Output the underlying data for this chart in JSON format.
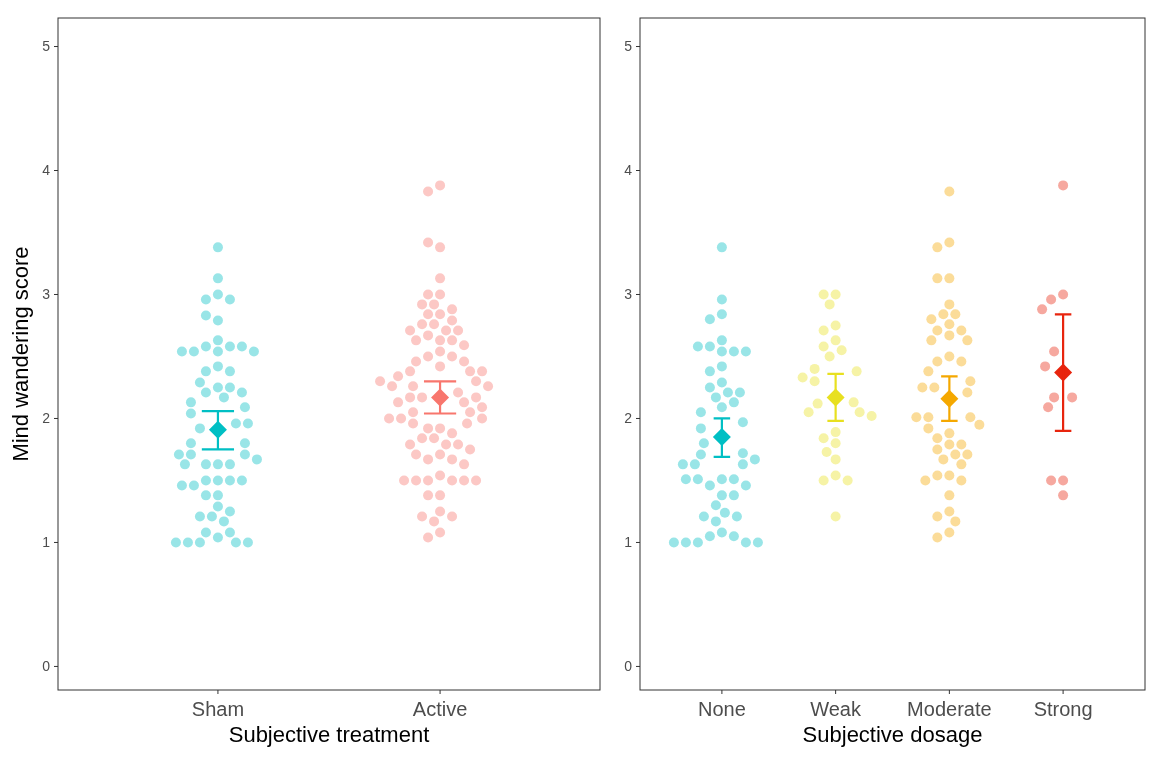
{
  "chart_data": [
    {
      "type": "scatter",
      "xlabel": "Subjective treatment",
      "ylabel": "Mind wandering score",
      "categories": [
        "Sham",
        "Active"
      ],
      "ylim": [
        -0.19,
        5.23
      ],
      "yticks": [
        0,
        1,
        2,
        3,
        4,
        5
      ],
      "series": [
        {
          "type": "scatter",
          "marker": "circle",
          "color": "#99e5e7",
          "x": [
            "Sham",
            "Sham",
            "Sham",
            "Sham",
            "Sham",
            "Sham",
            "Sham",
            "Sham",
            "Sham",
            "Sham",
            "Sham",
            "Sham",
            "Sham",
            "Sham",
            "Sham",
            "Sham",
            "Sham",
            "Sham",
            "Sham",
            "Sham",
            "Sham",
            "Sham",
            "Sham",
            "Sham",
            "Sham",
            "Sham",
            "Sham",
            "Sham",
            "Sham",
            "Sham",
            "Sham",
            "Sham",
            "Sham",
            "Sham",
            "Sham",
            "Sham",
            "Sham",
            "Sham",
            "Sham",
            "Sham",
            "Sham",
            "Sham",
            "Sham",
            "Sham",
            "Sham",
            "Sham",
            "Sham",
            "Sham",
            "Sham",
            "Sham",
            "Sham",
            "Sham",
            "Sham",
            "Sham",
            "Sham",
            "Sham",
            "Sham",
            "Sham",
            "Sham",
            "Sham",
            "Sham"
          ],
          "values": [
            3.38,
            3.13,
            3.0,
            2.96,
            2.96,
            2.79,
            2.83,
            2.54,
            2.58,
            2.58,
            2.54,
            2.58,
            2.54,
            2.54,
            2.63,
            2.42,
            2.38,
            2.38,
            2.25,
            2.21,
            2.13,
            2.17,
            2.25,
            2.29,
            2.21,
            2.09,
            2.04,
            1.92,
            1.96,
            1.96,
            1.8,
            1.8,
            1.71,
            1.71,
            1.71,
            1.67,
            1.63,
            1.63,
            1.63,
            1.63,
            1.5,
            1.5,
            1.5,
            1.46,
            1.5,
            1.46,
            1.38,
            1.38,
            1.29,
            1.21,
            1.25,
            1.21,
            1.17,
            1.04,
            1.08,
            1.08,
            1.0,
            1.0,
            1.0,
            1.0,
            1.0
          ]
        },
        {
          "type": "scatter",
          "marker": "circle",
          "color": "#fcc8c5",
          "x": [
            "Active",
            "Active",
            "Active",
            "Active",
            "Active",
            "Active",
            "Active",
            "Active",
            "Active",
            "Active",
            "Active",
            "Active",
            "Active",
            "Active",
            "Active",
            "Active",
            "Active",
            "Active",
            "Active",
            "Active",
            "Active",
            "Active",
            "Active",
            "Active",
            "Active",
            "Active",
            "Active",
            "Active",
            "Active",
            "Active",
            "Active",
            "Active",
            "Active",
            "Active",
            "Active",
            "Active",
            "Active",
            "Active",
            "Active",
            "Active",
            "Active",
            "Active",
            "Active",
            "Active",
            "Active",
            "Active",
            "Active",
            "Active",
            "Active",
            "Active",
            "Active",
            "Active",
            "Active",
            "Active",
            "Active",
            "Active",
            "Active",
            "Active",
            "Active",
            "Active",
            "Active",
            "Active",
            "Active",
            "Active",
            "Active",
            "Active",
            "Active",
            "Active",
            "Active",
            "Active",
            "Active",
            "Active",
            "Active",
            "Active",
            "Active",
            "Active",
            "Active",
            "Active",
            "Active",
            "Active",
            "Active"
          ],
          "values": [
            3.88,
            3.83,
            3.38,
            3.42,
            3.13,
            3.0,
            3.0,
            2.92,
            2.84,
            2.88,
            2.92,
            2.84,
            2.79,
            2.76,
            2.71,
            2.76,
            2.63,
            2.71,
            2.67,
            2.71,
            2.63,
            2.63,
            2.59,
            2.54,
            2.5,
            2.5,
            2.46,
            2.46,
            2.42,
            2.38,
            2.38,
            2.34,
            2.38,
            2.3,
            2.26,
            2.26,
            2.26,
            2.3,
            2.17,
            2.21,
            2.17,
            2.13,
            2.17,
            2.13,
            2.09,
            2.05,
            2.05,
            1.96,
            2.0,
            2.0,
            2.0,
            1.96,
            1.92,
            1.92,
            1.88,
            1.84,
            1.79,
            1.84,
            1.79,
            1.79,
            1.71,
            1.67,
            1.67,
            1.71,
            1.75,
            1.63,
            1.54,
            1.5,
            1.5,
            1.5,
            1.5,
            1.5,
            1.5,
            1.38,
            1.38,
            1.25,
            1.17,
            1.21,
            1.21,
            1.08,
            1.04
          ]
        },
        {
          "type": "scatter",
          "marker": "diamond",
          "color": "#00bfc4",
          "x": [
            "Sham"
          ],
          "values": [
            1.91
          ],
          "errors": [
            [
              1.75,
              2.06
            ]
          ]
        },
        {
          "type": "scatter",
          "marker": "diamond",
          "color": "#f8766d",
          "x": [
            "Active"
          ],
          "values": [
            2.17
          ],
          "errors": [
            [
              2.04,
              2.3
            ]
          ]
        }
      ]
    },
    {
      "type": "scatter",
      "xlabel": "Subjective dosage",
      "categories": [
        "None",
        "Weak",
        "Moderate",
        "Strong"
      ],
      "ylim": [
        -0.19,
        5.23
      ],
      "yticks": [
        0,
        1,
        2,
        3,
        4,
        5
      ],
      "series": [
        {
          "type": "scatter",
          "marker": "circle",
          "color": "#99e5e7",
          "x": [
            "None",
            "None",
            "None",
            "None",
            "None",
            "None",
            "None",
            "None",
            "None",
            "None",
            "None",
            "None",
            "None",
            "None",
            "None",
            "None",
            "None",
            "None",
            "None",
            "None",
            "None",
            "None",
            "None",
            "None",
            "None",
            "None",
            "None",
            "None",
            "None",
            "None",
            "None",
            "None",
            "None",
            "None",
            "None",
            "None",
            "None",
            "None",
            "None",
            "None",
            "None",
            "None",
            "None",
            "None",
            "None",
            "None",
            "None",
            "None",
            "None",
            "None"
          ],
          "values": [
            3.38,
            2.96,
            2.84,
            2.8,
            2.63,
            2.58,
            2.54,
            2.54,
            2.58,
            2.54,
            2.42,
            2.38,
            2.29,
            2.25,
            2.21,
            2.21,
            2.17,
            2.13,
            2.09,
            2.05,
            1.97,
            1.92,
            1.8,
            1.72,
            1.71,
            1.63,
            1.63,
            1.67,
            1.63,
            1.51,
            1.46,
            1.51,
            1.51,
            1.46,
            1.51,
            1.38,
            1.38,
            1.3,
            1.24,
            1.17,
            1.21,
            1.21,
            1.08,
            1.05,
            1.05,
            1.0,
            1.0,
            1.0,
            1.0,
            1.0
          ]
        },
        {
          "type": "scatter",
          "marker": "circle",
          "color": "#f6f3a6",
          "x": [
            "Weak",
            "Weak",
            "Weak",
            "Weak",
            "Weak",
            "Weak",
            "Weak",
            "Weak",
            "Weak",
            "Weak",
            "Weak",
            "Weak",
            "Weak",
            "Weak",
            "Weak",
            "Weak",
            "Weak",
            "Weak",
            "Weak",
            "Weak",
            "Weak",
            "Weak",
            "Weak",
            "Weak",
            "Weak",
            "Weak",
            "Weak"
          ],
          "values": [
            3.0,
            3.0,
            2.92,
            2.75,
            2.71,
            2.63,
            2.58,
            2.55,
            2.5,
            2.4,
            2.38,
            2.3,
            2.33,
            2.12,
            2.13,
            2.05,
            2.05,
            2.02,
            1.89,
            1.84,
            1.8,
            1.73,
            1.67,
            1.54,
            1.5,
            1.5,
            1.21
          ]
        },
        {
          "type": "scatter",
          "marker": "circle",
          "color": "#fbdc99",
          "x": [
            "Moderate",
            "Moderate",
            "Moderate",
            "Moderate",
            "Moderate",
            "Moderate",
            "Moderate",
            "Moderate",
            "Moderate",
            "Moderate",
            "Moderate",
            "Moderate",
            "Moderate",
            "Moderate",
            "Moderate",
            "Moderate",
            "Moderate",
            "Moderate",
            "Moderate",
            "Moderate",
            "Moderate",
            "Moderate",
            "Moderate",
            "Moderate",
            "Moderate",
            "Moderate",
            "Moderate",
            "Moderate",
            "Moderate",
            "Moderate",
            "Moderate",
            "Moderate",
            "Moderate",
            "Moderate",
            "Moderate",
            "Moderate",
            "Moderate",
            "Moderate",
            "Moderate",
            "Moderate",
            "Moderate",
            "Moderate",
            "Moderate",
            "Moderate",
            "Moderate",
            "Moderate",
            "Moderate"
          ],
          "values": [
            3.83,
            3.42,
            3.38,
            3.13,
            3.13,
            2.92,
            2.84,
            2.84,
            2.8,
            2.76,
            2.71,
            2.71,
            2.67,
            2.63,
            2.63,
            2.5,
            2.46,
            2.46,
            2.38,
            2.3,
            2.25,
            2.25,
            2.21,
            2.01,
            2.01,
            2.01,
            1.95,
            1.92,
            1.88,
            1.84,
            1.79,
            1.79,
            1.75,
            1.71,
            1.71,
            1.67,
            1.63,
            1.54,
            1.54,
            1.5,
            1.5,
            1.38,
            1.25,
            1.21,
            1.17,
            1.08,
            1.04
          ]
        },
        {
          "type": "scatter",
          "marker": "circle",
          "color": "#f6a89f",
          "x": [
            "Strong",
            "Strong",
            "Strong",
            "Strong",
            "Strong",
            "Strong",
            "Strong",
            "Strong",
            "Strong",
            "Strong",
            "Strong",
            "Strong"
          ],
          "values": [
            3.88,
            3.0,
            2.96,
            2.88,
            2.54,
            2.42,
            2.17,
            2.17,
            2.09,
            1.5,
            1.5,
            1.38
          ]
        },
        {
          "type": "scatter",
          "marker": "diamond",
          "color": "#00bfc4",
          "x": [
            "None"
          ],
          "values": [
            1.85
          ],
          "errors": [
            [
              1.69,
              2.0
            ]
          ]
        },
        {
          "type": "scatter",
          "marker": "diamond",
          "color": "#e8e020",
          "x": [
            "Weak"
          ],
          "values": [
            2.17
          ],
          "errors": [
            [
              1.98,
              2.36
            ]
          ]
        },
        {
          "type": "scatter",
          "marker": "diamond",
          "color": "#f5a800",
          "x": [
            "Moderate"
          ],
          "values": [
            2.16
          ],
          "errors": [
            [
              1.98,
              2.34
            ]
          ]
        },
        {
          "type": "scatter",
          "marker": "diamond",
          "color": "#e8250e",
          "x": [
            "Strong"
          ],
          "values": [
            2.37
          ],
          "errors": [
            [
              1.9,
              2.84
            ]
          ]
        }
      ]
    }
  ]
}
